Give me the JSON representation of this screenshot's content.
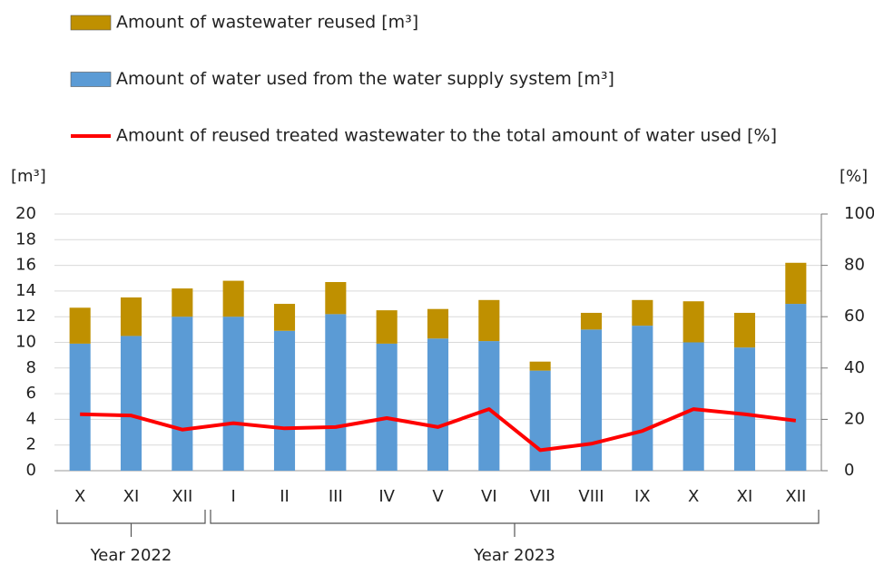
{
  "chart_data": {
    "type": "bar",
    "y_label": "[m³]",
    "y2_label": "[%]",
    "categories": [
      "X",
      "XI",
      "XII",
      "I",
      "II",
      "III",
      "IV",
      "V",
      "VI",
      "VII",
      "VIII",
      "IX",
      "X",
      "XI",
      "XII"
    ],
    "groups": [
      {
        "label": "Year 2022",
        "count": 3
      },
      {
        "label": "Year 2023",
        "count": 12
      }
    ],
    "series": [
      {
        "name": "Amount of wastewater reused [m³]",
        "color": "#bf9000",
        "type": "bar",
        "values": [
          2.8,
          3.0,
          2.2,
          2.8,
          2.1,
          2.5,
          2.6,
          2.3,
          3.2,
          0.7,
          1.3,
          2.0,
          3.2,
          2.7,
          3.2
        ]
      },
      {
        "name": "Amount of water used from the water supply system [m³]",
        "color": "#5b9bd5",
        "type": "bar",
        "values": [
          9.9,
          10.5,
          12.0,
          12.0,
          10.9,
          12.2,
          9.9,
          10.3,
          10.1,
          7.8,
          11.0,
          11.3,
          10.0,
          9.6,
          13.0
        ]
      },
      {
        "name": "Amount of reused treated wastewater to the total amount of water used [%]",
        "color": "#ff0000",
        "type": "line",
        "axis": "y2",
        "values": [
          22,
          21.5,
          16,
          18.5,
          16.5,
          17,
          20.5,
          17,
          24,
          8,
          10.5,
          15.5,
          24,
          22,
          19.5
        ]
      }
    ],
    "stacked": true,
    "ylim": [
      0,
      20
    ],
    "yticks": [
      0,
      2,
      4,
      6,
      8,
      10,
      12,
      14,
      16,
      18,
      20
    ],
    "y2lim": [
      0,
      100
    ],
    "y2ticks": [
      0,
      20,
      40,
      60,
      80,
      100
    ],
    "grid": true
  }
}
